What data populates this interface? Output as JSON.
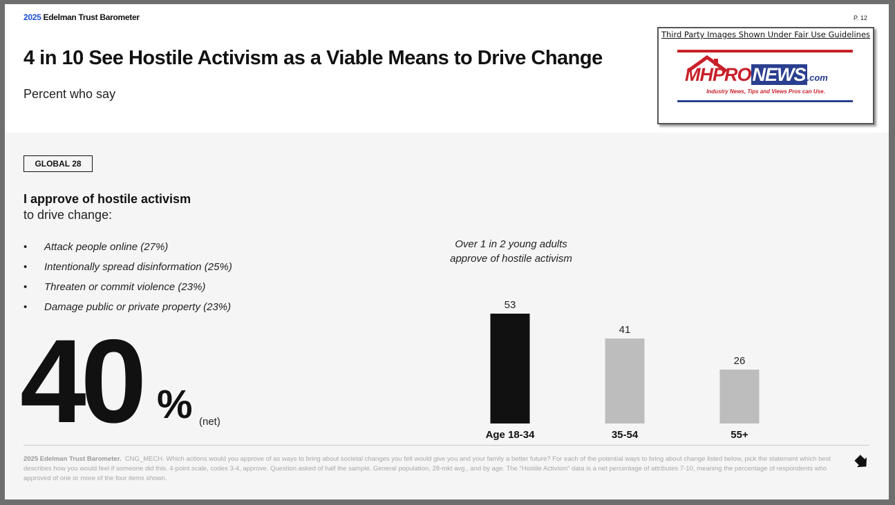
{
  "header": {
    "brand_year": "2025",
    "brand_name": "Edelman Trust Barometer",
    "page": "P. 12"
  },
  "title": "4 in 10 See Hostile Activism as a Viable Means to Drive Change",
  "subtitle": "Percent who say",
  "logo": {
    "caption": "Third Party Images Shown Under Fair Use Guidelines",
    "word_mhpro": "MHPRO",
    "word_news": "NEWS",
    "word_com": ".com",
    "tagline": "Industry News, Tips and Views Pros can Use."
  },
  "badge": "GLOBAL 28",
  "statement": {
    "bold": "I approve of hostile activism",
    "rest": "to drive change:"
  },
  "items": [
    "Attack people online (27%)",
    "Intentionally spread disinformation (25%)",
    "Threaten or commit violence (23%)",
    "Damage public or private property (23%)"
  ],
  "headline": {
    "value": "40",
    "unit": "%",
    "qualifier": "(net)"
  },
  "chart_title": [
    "Over 1 in 2 young adults",
    "approve of hostile activism"
  ],
  "chart_data": {
    "type": "bar",
    "categories": [
      "Age 18-34",
      "35-54",
      "55+"
    ],
    "values": [
      53,
      41,
      26
    ],
    "ylim": [
      0,
      53
    ],
    "colors": [
      "#111111",
      "#bdbdbd",
      "#bdbdbd"
    ],
    "grid": false
  },
  "footnote": {
    "source": "2025 Edelman Trust Barometer.",
    "text": "CNG_MECH. Which actions would you approve of as ways to bring about societal changes you felt would give you and your family a better future? For each of the potential ways to bring about change listed below, pick the statement which best describes how you would feel if someone did this. 4-point scale, codes 3-4, approve. Question asked of half the sample. General population, 28-mkt avg., and by age. The “Hostile Activism” data is a net percentage of attributes 7-10, meaning the percentage of respondents who approved of one or more of the four items shown."
  }
}
